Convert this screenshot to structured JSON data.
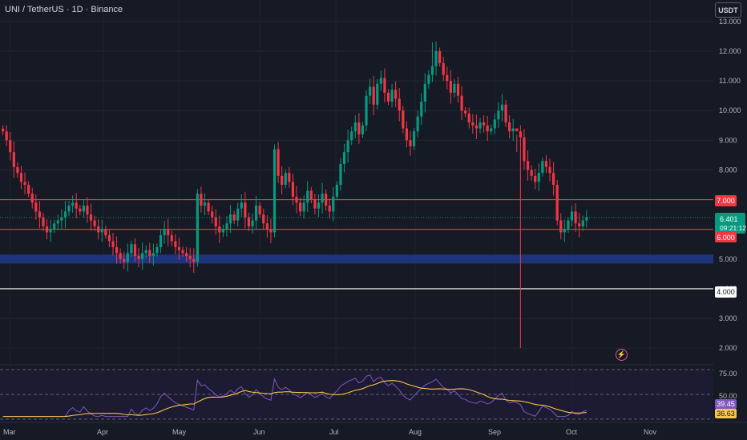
{
  "header": {
    "title": "UNI / TetherUS · 1D · Binance",
    "unit_button": "USDT"
  },
  "price_axis": {
    "ticks": [
      "13.000",
      "12.000",
      "11.000",
      "10.000",
      "9.000",
      "8.000",
      "7.000",
      "6.000",
      "5.000",
      "4.000",
      "3.000",
      "2.000"
    ]
  },
  "price_labels": {
    "level_7": {
      "text": "7.000",
      "color": "#f23645"
    },
    "level_6": {
      "text": "6.000",
      "color": "#f23645"
    },
    "level_4": {
      "text": "4.000",
      "color": "#ffffff"
    },
    "current_price": "6.401",
    "countdown": "09:21:12",
    "current_color": "#089981"
  },
  "time_axis": {
    "labels": [
      "Mar",
      "Apr",
      "May",
      "Jun",
      "Jul",
      "Aug",
      "Sep",
      "Oct",
      "Nov"
    ]
  },
  "rsi_panel": {
    "ticks": [
      "75.00",
      "50.00"
    ],
    "rsi_value": "39.45",
    "rsi_color": "#7e57c2",
    "ma_value": "36.63",
    "ma_color": "#f7c548"
  },
  "chart_data": {
    "type": "candlestick",
    "symbol": "UNI / TetherUS",
    "interval": "1D",
    "exchange": "Binance",
    "ylim": [
      1.6,
      13.4
    ],
    "horizontal_levels": [
      {
        "price": 7.0,
        "color": "#f23645"
      },
      {
        "price": 6.0,
        "color": "#f23645"
      },
      {
        "price": 4.0,
        "color": "#ffffff"
      }
    ],
    "support_zone": {
      "from": 4.85,
      "to": 5.15,
      "color": "#1e3a8a"
    },
    "colors": {
      "up": "#089981",
      "down": "#f23645"
    },
    "closes": [
      9.3,
      9.0,
      8.6,
      8.1,
      7.9,
      7.6,
      7.5,
      7.2,
      6.9,
      6.6,
      6.4,
      6.1,
      5.9,
      6.0,
      6.2,
      6.3,
      6.4,
      6.6,
      6.8,
      6.9,
      6.7,
      6.6,
      6.8,
      6.5,
      6.3,
      6.1,
      5.9,
      6.0,
      5.8,
      5.6,
      5.4,
      5.2,
      5.0,
      4.9,
      5.2,
      5.5,
      5.1,
      5.0,
      5.2,
      5.3,
      5.1,
      5.2,
      5.4,
      5.8,
      6.0,
      5.8,
      5.6,
      5.4,
      5.3,
      5.2,
      5.1,
      5.0,
      4.9,
      7.2,
      6.8,
      6.9,
      6.6,
      6.4,
      6.1,
      5.9,
      6.0,
      6.2,
      6.5,
      6.3,
      6.7,
      6.9,
      6.4,
      6.1,
      6.3,
      6.8,
      6.5,
      6.2,
      6.0,
      5.9,
      8.7,
      7.8,
      7.5,
      7.9,
      7.6,
      7.1,
      6.9,
      6.6,
      6.9,
      7.3,
      7.0,
      6.7,
      6.9,
      7.2,
      6.8,
      6.6,
      7.1,
      7.5,
      8.2,
      8.6,
      9.0,
      9.3,
      9.6,
      9.2,
      9.5,
      10.5,
      10.8,
      10.2,
      10.9,
      11.1,
      10.6,
      10.3,
      10.7,
      10.4,
      10.0,
      9.4,
      9.0,
      8.8,
      9.3,
      9.8,
      10.3,
      10.9,
      11.2,
      11.5,
      12.0,
      11.6,
      11.2,
      11.0,
      10.6,
      10.9,
      10.5,
      10.0,
      9.9,
      9.6,
      9.5,
      9.4,
      9.6,
      9.5,
      9.3,
      9.4,
      9.7,
      10.0,
      10.2,
      9.6,
      9.3,
      9.4,
      9.3,
      9.1,
      8.3,
      8.0,
      7.8,
      7.6,
      7.9,
      8.3,
      8.1,
      7.9,
      7.5,
      6.3,
      5.9,
      6.0,
      6.3,
      6.6,
      6.2,
      6.1,
      6.3,
      6.4
    ],
    "rsi_ylim": [
      25,
      80
    ]
  }
}
